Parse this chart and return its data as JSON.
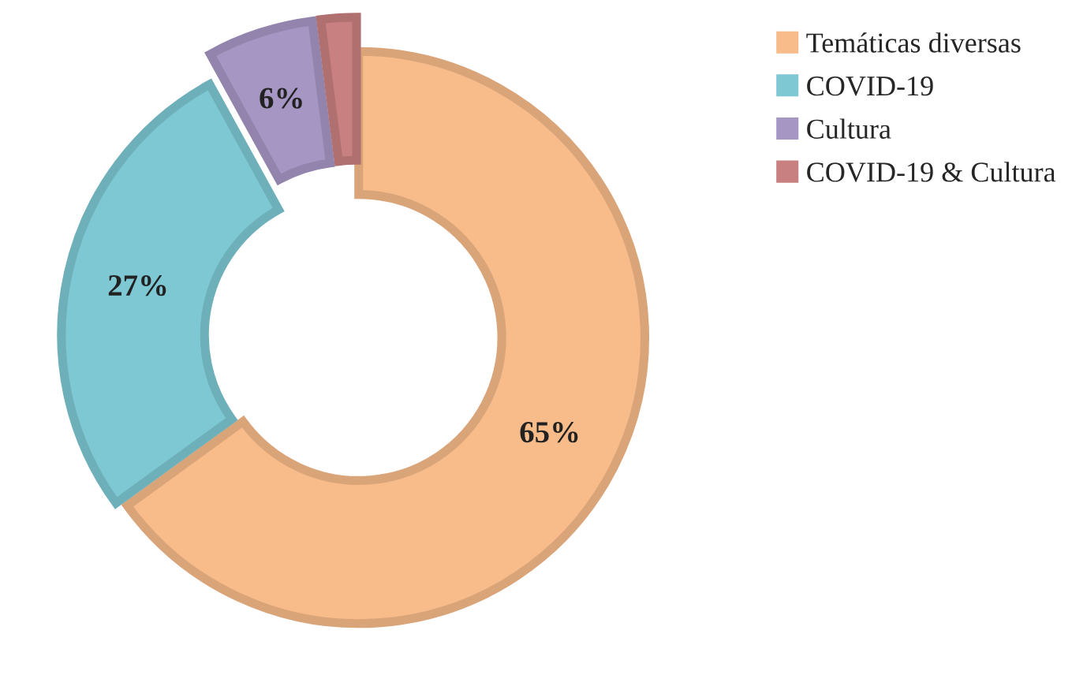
{
  "chart_data": {
    "type": "donut",
    "categories": [
      "Temáticas diversas",
      "COVID-19",
      "Cultura",
      "COVID-19 & Cultura"
    ],
    "values": [
      65,
      27,
      6,
      2
    ],
    "colors": [
      "#f8bb8a",
      "#7ec8d4",
      "#a696c4",
      "#c98080"
    ],
    "value_labels": [
      "65%",
      "27%",
      "6%",
      null
    ],
    "legend": "top right"
  }
}
